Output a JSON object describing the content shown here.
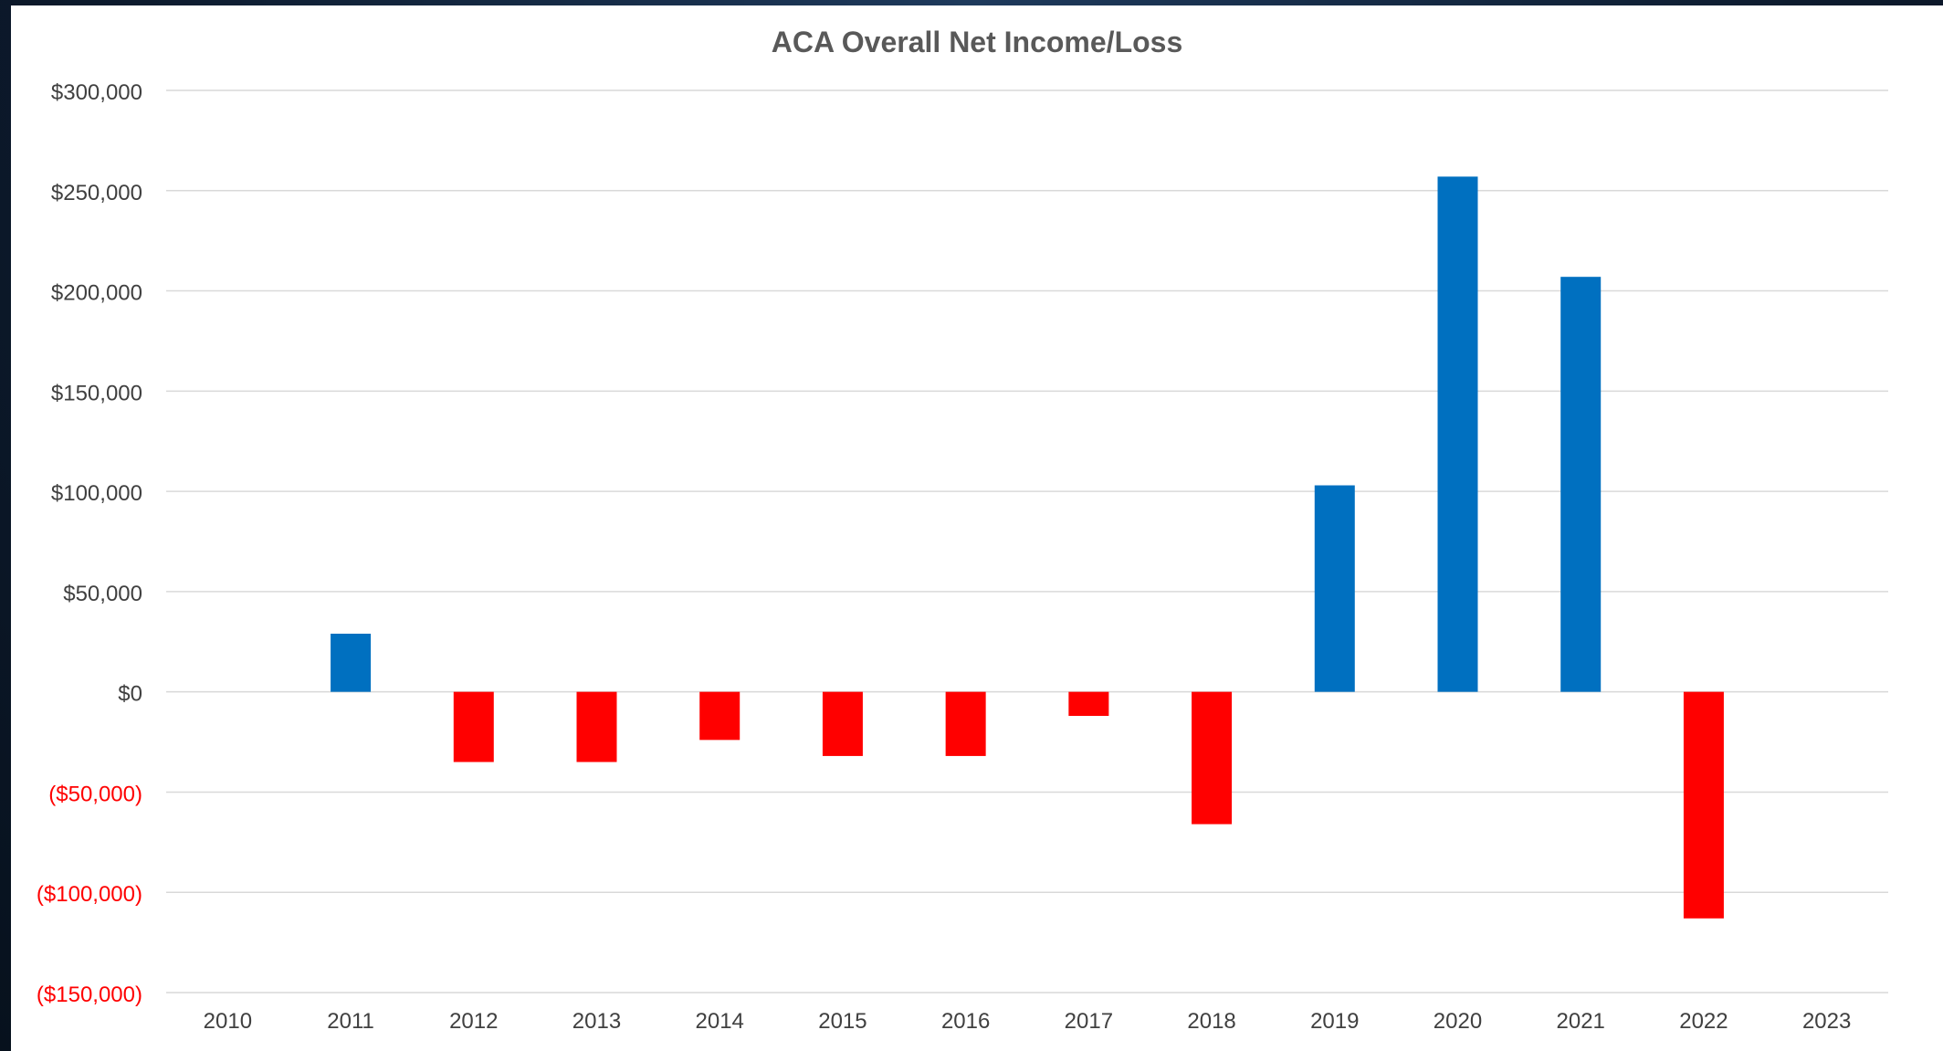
{
  "chart_data": {
    "type": "bar",
    "title": "ACA Overall Net Income/Loss",
    "xlabel": "",
    "ylabel": "",
    "categories": [
      "2010",
      "2011",
      "2012",
      "2013",
      "2014",
      "2015",
      "2016",
      "2017",
      "2018",
      "2019",
      "2020",
      "2021",
      "2022",
      "2023"
    ],
    "values": [
      null,
      29000,
      -35000,
      -35000,
      -24000,
      -32000,
      -32000,
      -12000,
      -66000,
      103000,
      257000,
      207000,
      -113000,
      null
    ],
    "ylim": [
      -150000,
      300000
    ],
    "yticks": [
      300000,
      250000,
      200000,
      150000,
      100000,
      50000,
      0,
      -50000,
      -100000,
      -150000
    ],
    "ytick_labels": [
      "$300,000",
      "$250,000",
      "$200,000",
      "$150,000",
      "$100,000",
      "$50,000",
      "$0",
      "($50,000)",
      "($100,000)",
      "($150,000)"
    ],
    "grid": true,
    "legend": "none",
    "colors": {
      "positive": "#0070c0",
      "negative": "#ff0000",
      "positive_label": "#404040",
      "negative_label": "#ff0000",
      "grid": "#d9d9d9"
    }
  }
}
